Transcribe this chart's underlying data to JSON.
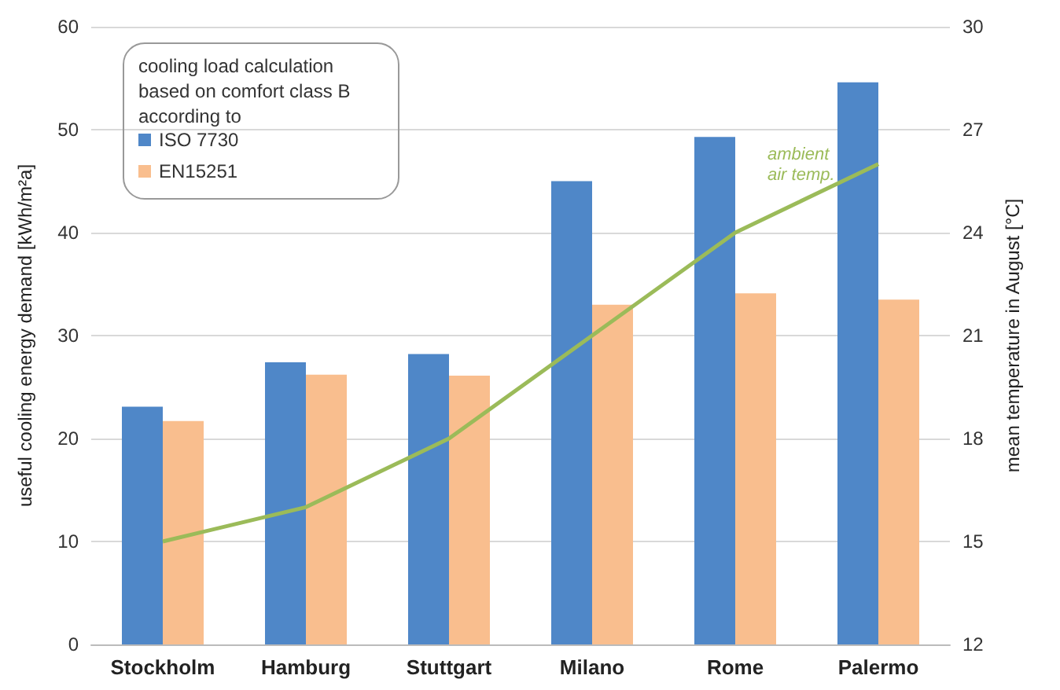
{
  "chart_data": {
    "type": "bar",
    "categories": [
      "Stockholm",
      "Hamburg",
      "Stuttgart",
      "Milano",
      "Rome",
      "Palermo"
    ],
    "series": [
      {
        "name": "ISO 7730",
        "color": "#4f87c8",
        "values": [
          23.1,
          27.4,
          28.2,
          45,
          49.3,
          54.6
        ]
      },
      {
        "name": "EN15251",
        "color": "#f9be8e",
        "values": [
          21.7,
          26.2,
          26.1,
          33,
          34.1,
          33.5
        ]
      },
      {
        "type": "line",
        "axis": "y2",
        "color": "#9bbb59",
        "values": [
          15,
          16,
          18,
          21,
          24,
          26
        ]
      }
    ],
    "ylabel": "useful cooling energy demand [kWh/m²a]",
    "y2label": "mean temperature in August [°C]",
    "legend_title": "cooling load calculation\nbased on comfort class B\naccording to",
    "annotations": [
      "ambient\nair temp."
    ],
    "ylim": [
      0,
      60
    ],
    "yticks": [
      0,
      10,
      20,
      30,
      40,
      50,
      60
    ],
    "y2lim": [
      12,
      30
    ],
    "y2ticks": [
      12,
      15,
      18,
      21,
      24,
      27,
      30
    ],
    "grid": "y",
    "legend": "top left",
    "marker": "none",
    "line_style": "solid"
  }
}
